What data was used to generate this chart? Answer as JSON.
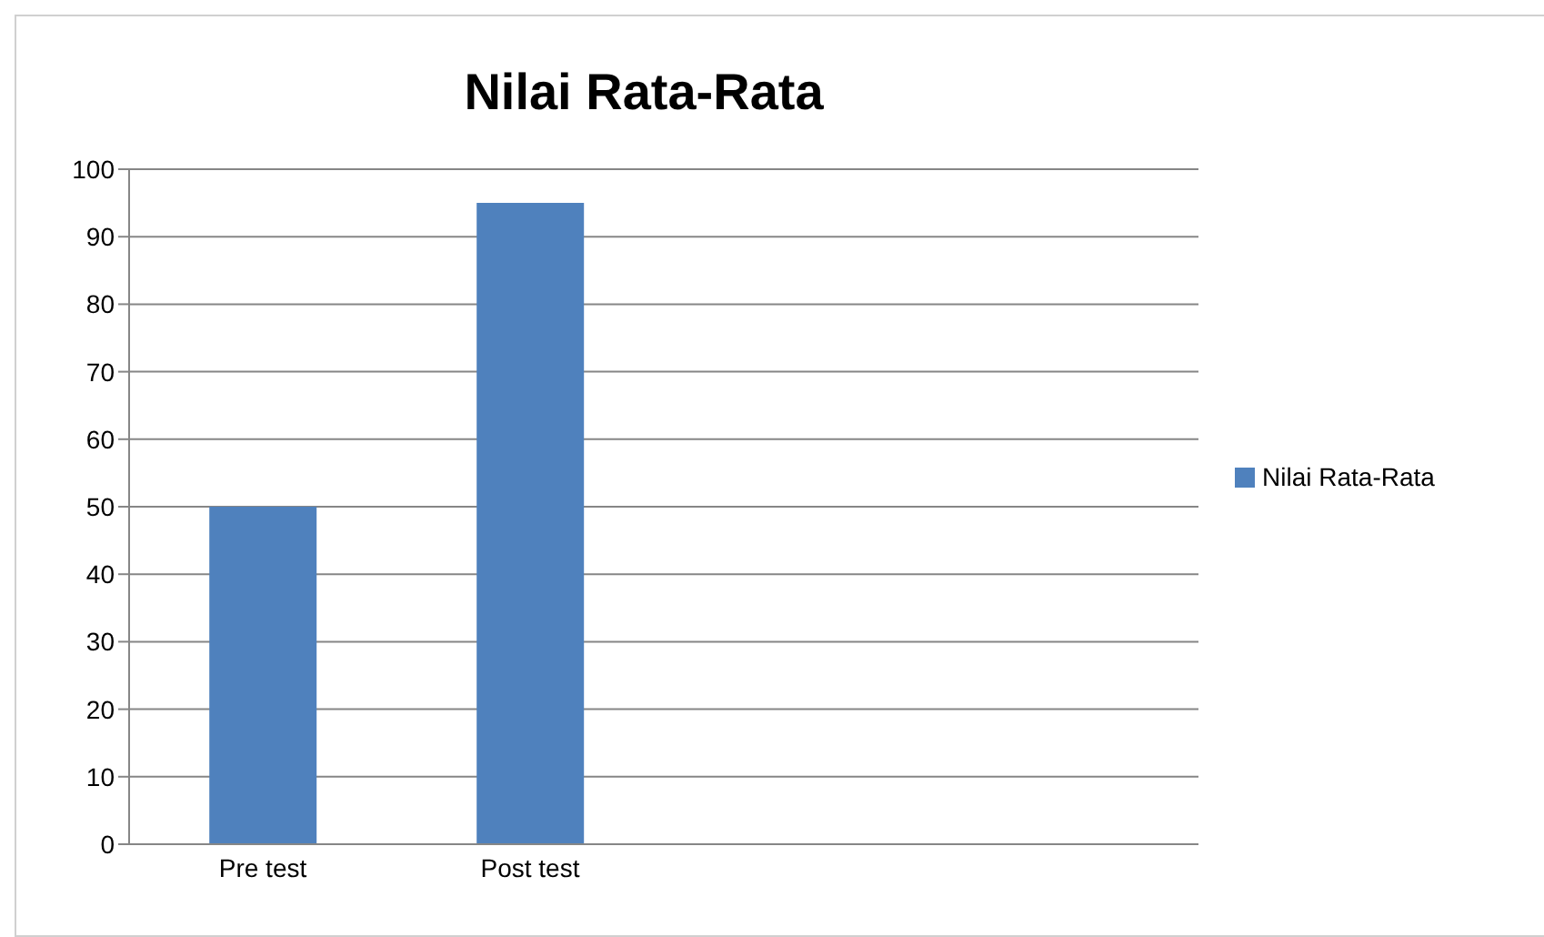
{
  "chart_data": {
    "type": "bar",
    "title": "Nilai Rata-Rata",
    "categories": [
      "Pre test",
      "Post test",
      null,
      null
    ],
    "series": [
      {
        "name": "Nilai Rata-Rata",
        "color": "#4f81bd",
        "values": [
          50,
          95,
          null,
          null
        ]
      }
    ],
    "ylim": [
      0,
      100
    ],
    "yticks": [
      0,
      10,
      20,
      30,
      40,
      50,
      60,
      70,
      80,
      90,
      100
    ],
    "grid": "y",
    "legend": "right"
  }
}
